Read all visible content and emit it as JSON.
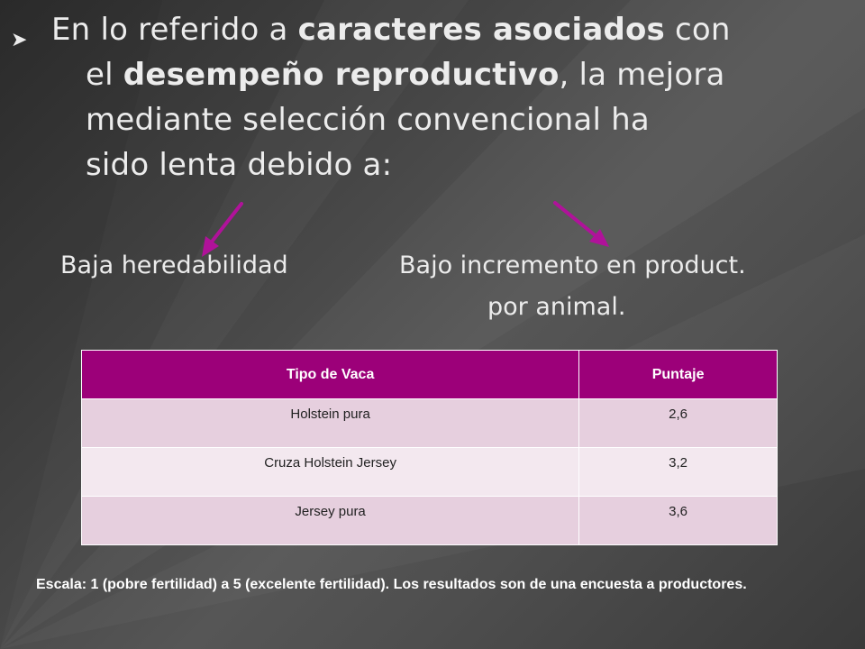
{
  "intro": {
    "line1_a": "En lo referido a ",
    "line1_bold": "caracteres asociados",
    "line1_b": " con",
    "line2_a": "el ",
    "line2_bold": "desempeño reproductivo",
    "line2_b": ", la mejora",
    "line3": "mediante selección convencional ha",
    "line4": "sido lenta debido a:"
  },
  "causes": {
    "left": "Baja heredabilidad",
    "right_line1": "Bajo incremento en product.",
    "right_line2": "por animal."
  },
  "table": {
    "headers": [
      "Tipo de Vaca",
      "Puntaje"
    ],
    "rows": [
      [
        "Holstein pura",
        "2,6"
      ],
      [
        "Cruza Holstein Jersey",
        "3,2"
      ],
      [
        "Jersey pura",
        "3,6"
      ]
    ]
  },
  "note": "Escala: 1 (pobre fertilidad) a 5 (excelente fertilidad). Los resultados son de una encuesta a productores.",
  "colors": {
    "accent": "#9c0079",
    "arrow": "#b0129a",
    "row_odd": "#e6cfde",
    "row_even": "#f3e8ef"
  },
  "icons": [
    "bullet-arrow-icon",
    "down-left-arrow-icon",
    "down-right-arrow-icon"
  ]
}
